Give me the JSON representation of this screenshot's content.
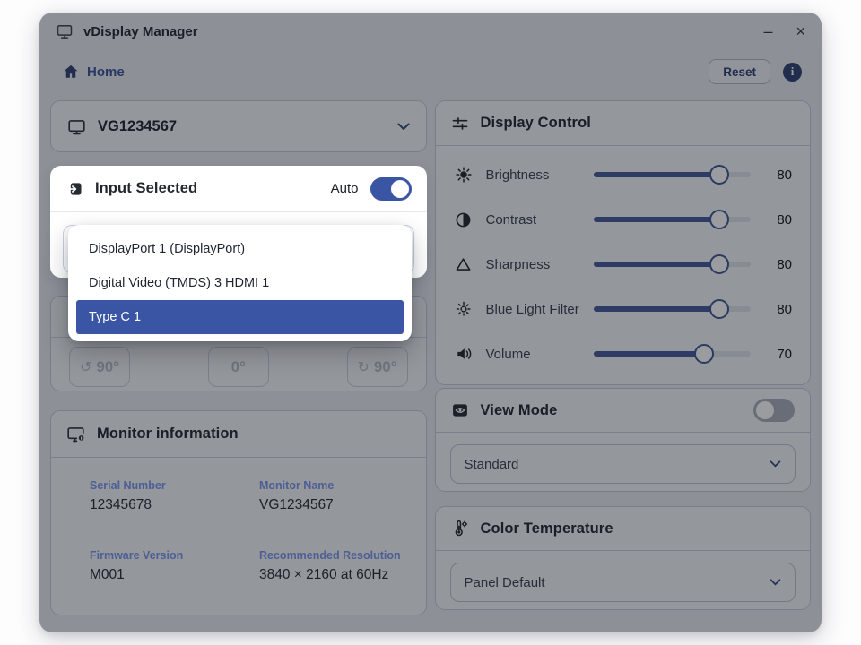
{
  "window": {
    "title": "vDisplay Manager",
    "minimize": "–",
    "close": "×"
  },
  "topbar": {
    "home": "Home",
    "reset": "Reset",
    "info": "i"
  },
  "device_selector": {
    "name": "VG1234567"
  },
  "input_selected": {
    "title": "Input Selected",
    "auto_label": "Auto",
    "auto_on": true,
    "options": [
      {
        "label": "DisplayPort 1 (DisplayPort)",
        "selected": false
      },
      {
        "label": "Digital Video (TMDS) 3 HDMI 1",
        "selected": false
      },
      {
        "label": "Type C 1",
        "selected": true
      }
    ]
  },
  "rotation": {
    "buttons": [
      {
        "icon": "↺",
        "label": "90°"
      },
      {
        "icon": "",
        "label": "0°"
      },
      {
        "icon": "↻",
        "label": "90°"
      }
    ]
  },
  "monitor_information": {
    "title": "Monitor information",
    "fields": [
      {
        "label": "Serial Number",
        "value": "12345678"
      },
      {
        "label": "Monitor Name",
        "value": "VG1234567"
      },
      {
        "label": "Firmware Version",
        "value": "M001"
      },
      {
        "label": "Recommended Resolution",
        "value": "3840 × 2160 at 60Hz"
      }
    ]
  },
  "display_control": {
    "title": "Display Control",
    "sliders": [
      {
        "icon": "brightness-icon",
        "label": "Brightness",
        "value": 80
      },
      {
        "icon": "contrast-icon",
        "label": "Contrast",
        "value": 80
      },
      {
        "icon": "sharpness-icon",
        "label": "Sharpness",
        "value": 80
      },
      {
        "icon": "blue-light-filter-icon",
        "label": "Blue Light Filter",
        "value": 80
      },
      {
        "icon": "volume-icon",
        "label": "Volume",
        "value": 70
      }
    ]
  },
  "view_mode": {
    "title": "View Mode",
    "toggle_on": false,
    "selected": "Standard"
  },
  "color_temperature": {
    "title": "Color Temperature",
    "selected": "Panel Default"
  },
  "colors": {
    "accent": "#3A55A4",
    "slider_fill": "#44599B",
    "label_blue": "#7C95EC",
    "overlay": "rgba(15,18,26,0.42)"
  }
}
